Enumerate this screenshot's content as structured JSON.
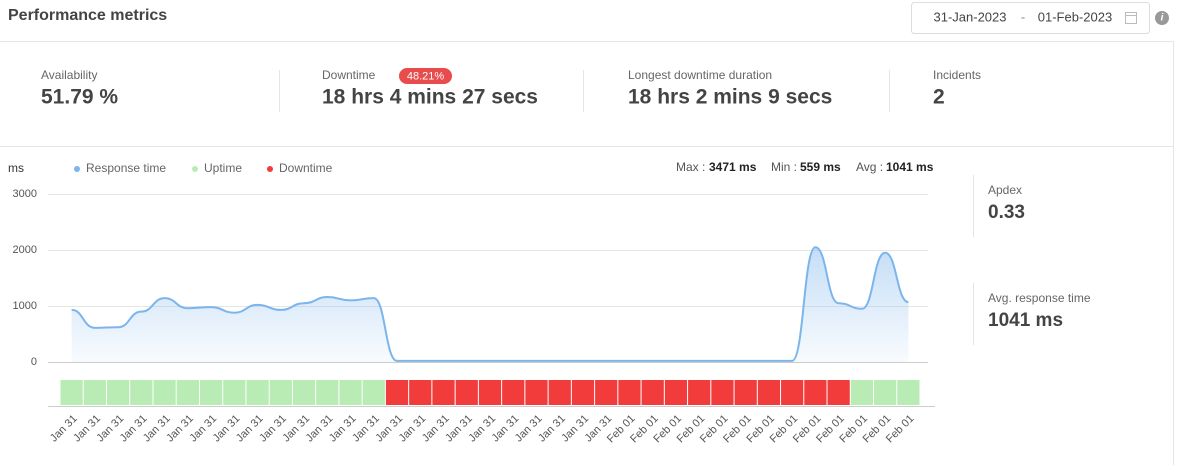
{
  "header": {
    "title": "Performance metrics",
    "date_from": "31-Jan-2023",
    "date_separator": "-",
    "date_to": "01-Feb-2023"
  },
  "stats": [
    {
      "label": "Availability",
      "value": "51.79 %"
    },
    {
      "label": "Downtime",
      "badge": "48.21%",
      "value": "18 hrs 4 mins 27 secs"
    },
    {
      "label": "Longest downtime duration",
      "value": "18 hrs 2 mins 9 secs"
    },
    {
      "label": "Incidents",
      "value": "2"
    }
  ],
  "side": [
    {
      "label": "Apdex",
      "value": "0.33"
    },
    {
      "label": "Avg. response time",
      "value": "1041 ms"
    }
  ],
  "chart_data": {
    "type": "line",
    "y_label": "ms",
    "summary": [
      {
        "label": "Max :",
        "value": "3471 ms"
      },
      {
        "label": "Min :",
        "value": "559 ms"
      },
      {
        "label": "Avg :",
        "value": "1041 ms"
      }
    ],
    "categories": [
      "Jan 31",
      "Jan 31",
      "Jan 31",
      "Jan 31",
      "Jan 31",
      "Jan 31",
      "Jan 31",
      "Jan 31",
      "Jan 31",
      "Jan 31",
      "Jan 31",
      "Jan 31",
      "Jan 31",
      "Jan 31",
      "Jan 31",
      "Jan 31",
      "Jan 31",
      "Jan 31",
      "Jan 31",
      "Jan 31",
      "Jan 31",
      "Jan 31",
      "Jan 31",
      "Jan 31",
      "Feb 01",
      "Feb 01",
      "Feb 01",
      "Feb 01",
      "Feb 01",
      "Feb 01",
      "Feb 01",
      "Feb 01",
      "Feb 01",
      "Feb 01",
      "Feb 01",
      "Feb 01",
      "Feb 01"
    ],
    "series": [
      {
        "name": "Response time",
        "color": "#7cb5ec",
        "values": [
          930,
          610,
          620,
          900,
          1140,
          960,
          980,
          880,
          1020,
          930,
          1050,
          1160,
          1100,
          1140,
          20,
          20,
          20,
          20,
          20,
          20,
          20,
          20,
          20,
          20,
          20,
          20,
          20,
          20,
          20,
          20,
          20,
          20,
          2050,
          1050,
          950,
          1950,
          1070
        ]
      },
      {
        "name": "Uptime",
        "color": "#b9ecb4",
        "values": [
          1,
          1,
          1,
          1,
          1,
          1,
          1,
          1,
          1,
          1,
          1,
          1,
          1,
          1,
          null,
          null,
          null,
          null,
          null,
          null,
          null,
          null,
          null,
          null,
          null,
          null,
          null,
          null,
          null,
          null,
          null,
          null,
          null,
          null,
          1,
          1,
          1
        ]
      },
      {
        "name": "Downtime",
        "color": "#f23c3c",
        "values": [
          null,
          null,
          null,
          null,
          null,
          null,
          null,
          null,
          null,
          null,
          null,
          null,
          null,
          null,
          1,
          1,
          1,
          1,
          1,
          1,
          1,
          1,
          1,
          1,
          1,
          1,
          1,
          1,
          1,
          1,
          1,
          1,
          1,
          1,
          null,
          null,
          null
        ]
      }
    ],
    "ylim": [
      0,
      3000
    ],
    "yticks": [
      0,
      1000,
      2000,
      3000
    ],
    "grid": true
  }
}
